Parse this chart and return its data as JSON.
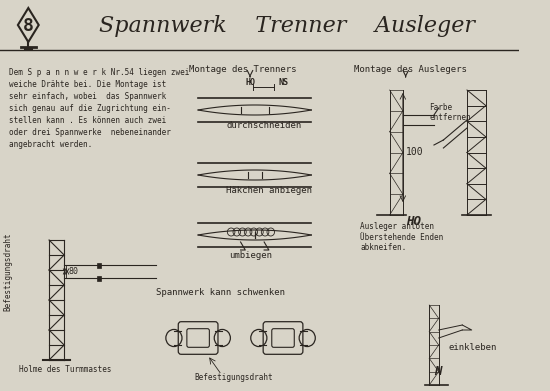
{
  "bg_color": "#d8d4c8",
  "title_text": "Spannwerk    Trenner    Ausleger",
  "number": "8",
  "body_text": [
    "Dem S p a n n w e r k Nr.54 liegen zwei",
    "weiche Drähte bei. Die Montage ist",
    "sehr einfach, wobei  das Spannwerk",
    "sich genau auf die Zugrichtung ein-",
    "stellen kann . Es können auch zwei",
    "oder drei Spannwerke  nebeneinander",
    "angebracht werden."
  ],
  "label_befestigungsdraht": "Befestigungsdraht",
  "label_holme": "Holme des Turmmastes",
  "label_befestigungsdraht2": "Befestigungsdraht",
  "label_spannwerk": "Spannwerk kann schwenken",
  "label_montage_trenner": "Montage des Trenners",
  "label_durchschneiden": "durchschneiden",
  "label_haekchen": "Häkchen anbiegen",
  "label_umbiegen": "umbiegen",
  "label_montage_ausleger": "Montage des Auslegers",
  "label_farbe": "Farbe\nentfernen",
  "label_100": "100",
  "label_ho": "HO",
  "label_ausleger": "Ausleger anlöten\nÜberstehende Enden\nabkneifen.",
  "label_einkleben": "einkleben",
  "label_n": "N",
  "label_ho_label": "HO",
  "label_ns": "NS",
  "label_ho_arrow": "HO",
  "label_80": "80",
  "line_color": "#2a2520",
  "text_color": "#2a2520",
  "header_line_color": "#2a2520"
}
